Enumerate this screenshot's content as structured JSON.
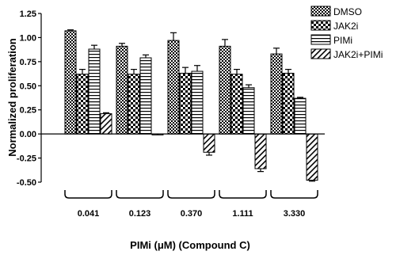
{
  "chart_data": {
    "type": "bar",
    "xlabel": "PIMi (μM) (Compound C)",
    "ylabel": "Normalized proliferation",
    "ylim": [
      -0.5,
      1.25
    ],
    "yticks": [
      "1.25",
      "1.00",
      "0.75",
      "0.50",
      "0.25",
      "0.00",
      "-0.25",
      "-0.50"
    ],
    "yticks_values": [
      1.25,
      1.0,
      0.75,
      0.5,
      0.25,
      0.0,
      -0.25,
      -0.5
    ],
    "categories": [
      "0.041",
      "0.123",
      "0.370",
      "1.111",
      "3.330"
    ],
    "series": [
      {
        "name": "DMSO",
        "pattern": "checker",
        "values": [
          1.07,
          0.91,
          0.97,
          0.91,
          0.83
        ],
        "errors": [
          0.01,
          0.03,
          0.08,
          0.07,
          0.06
        ]
      },
      {
        "name": "JAK2i",
        "pattern": "checker-large",
        "values": [
          0.62,
          0.62,
          0.63,
          0.62,
          0.63
        ],
        "errors": [
          0.05,
          0.05,
          0.06,
          0.05,
          0.04
        ]
      },
      {
        "name": "PIMi",
        "pattern": "hlines",
        "values": [
          0.88,
          0.79,
          0.65,
          0.48,
          0.37
        ],
        "errors": [
          0.04,
          0.03,
          0.06,
          0.03,
          0.01
        ]
      },
      {
        "name": "JAK2i+PIMi",
        "pattern": "diagonal",
        "values": [
          0.21,
          -0.01,
          -0.19,
          -0.36,
          -0.48
        ],
        "errors": [
          0.01,
          0.0,
          0.03,
          0.03,
          0.01
        ]
      }
    ],
    "legend_position": "top-right",
    "grid": false
  },
  "colors": {
    "bar_fill": "#ffffff",
    "ink": "#000000"
  }
}
